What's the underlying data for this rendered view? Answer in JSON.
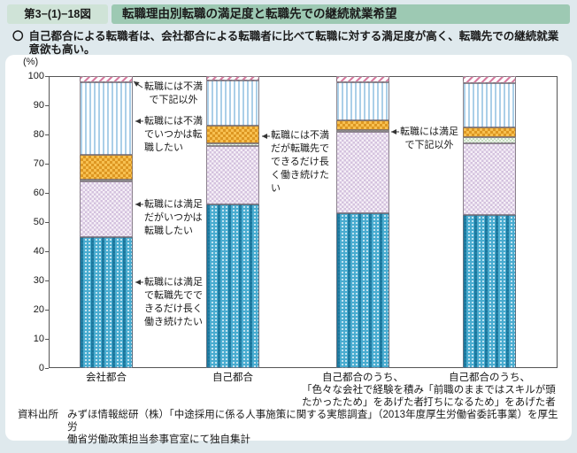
{
  "header": {
    "figure_number": "第3−(1)−18図",
    "title": "転職理由別転職の満足度と転職先での継続就業希望"
  },
  "summary": {
    "bullet": "〇",
    "text": "自己都合による転職者は、会社都合による転職者に比べて転職に対する満足度が高く、転職先での継続就業\n意欲も高い。"
  },
  "chart_data": {
    "type": "bar",
    "subtype": "stacked-100-percent",
    "title": "転職理由別転職の満足度と転職先での継続就業希望",
    "unit_label": "(%)",
    "ylim": [
      0,
      100
    ],
    "ytick_step": 10,
    "grid": "off",
    "legend_position": "arrow-annotations-on-plot",
    "categories": [
      [
        "会社都合"
      ],
      [
        "自己都合"
      ],
      [
        "自己都合のうち、",
        "「色々な会社で経験を積み",
        "たかったため」をあげた者"
      ],
      [
        "自己都合のうち、",
        "「前職のままではスキルが頭",
        "打ちになるため」をあげた者"
      ]
    ],
    "series": [
      {
        "name": "転職には満足で転職先でできるだけ長く働き続けたい",
        "pattern": "teal",
        "values": [
          45,
          56,
          53,
          52.5
        ]
      },
      {
        "name": "転職には満足だがいつかは転職したい",
        "pattern": "purple",
        "values": [
          19,
          20,
          28,
          24.5
        ]
      },
      {
        "name": "転職には満足で下記以外",
        "pattern": "green",
        "values": [
          0.5,
          1,
          0.5,
          2
        ]
      },
      {
        "name": "転職には不満だが転職先でできるだけ長く働き続けたい",
        "pattern": "orange",
        "values": [
          8.5,
          6,
          3.5,
          3.5
        ]
      },
      {
        "name": "転職には不満でいつかは転職したい",
        "pattern": "lblue",
        "values": [
          25,
          15.5,
          13,
          15
        ]
      },
      {
        "name": "転職には不満で下記以外",
        "pattern": "pink",
        "values": [
          2,
          1.5,
          2,
          2.5
        ]
      }
    ],
    "annotations": [
      {
        "text": "転職には不満\nで下記以外",
        "series": "転職には不満で下記以外"
      },
      {
        "text": "転職には不満\nでいつかは転\n職したい",
        "series": "転職には不満でいつかは転職したい"
      },
      {
        "text": "転職には満足\nだがいつかは\n転職したい",
        "series": "転職には満足だがいつかは転職したい"
      },
      {
        "text": "転職には満足\nで転職先でで\nきるだけ長く\n働き続けたい",
        "series": "転職には満足で転職先でできるだけ長く働き続けたい"
      },
      {
        "text": "転職には不満\nだが転職先で\nできるだけ長\nく働き続けた\nい",
        "series": "転職には不満だが転職先でできるだけ長く働き続けたい"
      },
      {
        "text": "転職には満足\nで下記以外",
        "series": "転職には満足で下記以外"
      }
    ]
  },
  "source": {
    "label": "資料出所",
    "text": "みずほ情報総研（株）「中途採用に係る人事施策に関する実態調査」（2013年度厚生労働省委託事業）を厚生労\n働省労働政策担当参事官室にて独自集計"
  },
  "colors": {
    "page_background": "#dfe9ed",
    "figure_box_background": "#cfe3d7",
    "title_bar_background": "#9dc9b3",
    "card_background": "#ffffff",
    "teal_segment": "#49acd0",
    "purple_segment": "#d4c2de",
    "green_segment": "#c6ddc1",
    "orange_segment": "#eead38",
    "light_blue_segment": "#abcfe8",
    "pink_segment": "#d87ba0"
  }
}
